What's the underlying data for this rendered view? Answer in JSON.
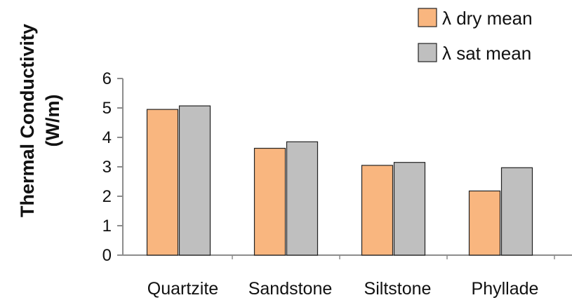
{
  "chart_data": {
    "type": "bar",
    "title": "",
    "xlabel": "",
    "ylabel": [
      "Thermal Conductivity",
      "(W/m)"
    ],
    "ylim": [
      0,
      6
    ],
    "yticks": [
      0,
      1,
      2,
      3,
      4,
      5,
      6
    ],
    "categories": [
      "Quartzite",
      "Sandstone",
      "Siltstone",
      "Phyllade"
    ],
    "series": [
      {
        "name": "λ dry mean",
        "color": "#F9B67F",
        "values": [
          4.95,
          3.63,
          3.05,
          2.18
        ]
      },
      {
        "name": "λ sat mean",
        "color": "#BFBFBF",
        "values": [
          5.07,
          3.85,
          3.15,
          2.97
        ]
      }
    ],
    "legend_position": "top-right",
    "grid": false
  }
}
